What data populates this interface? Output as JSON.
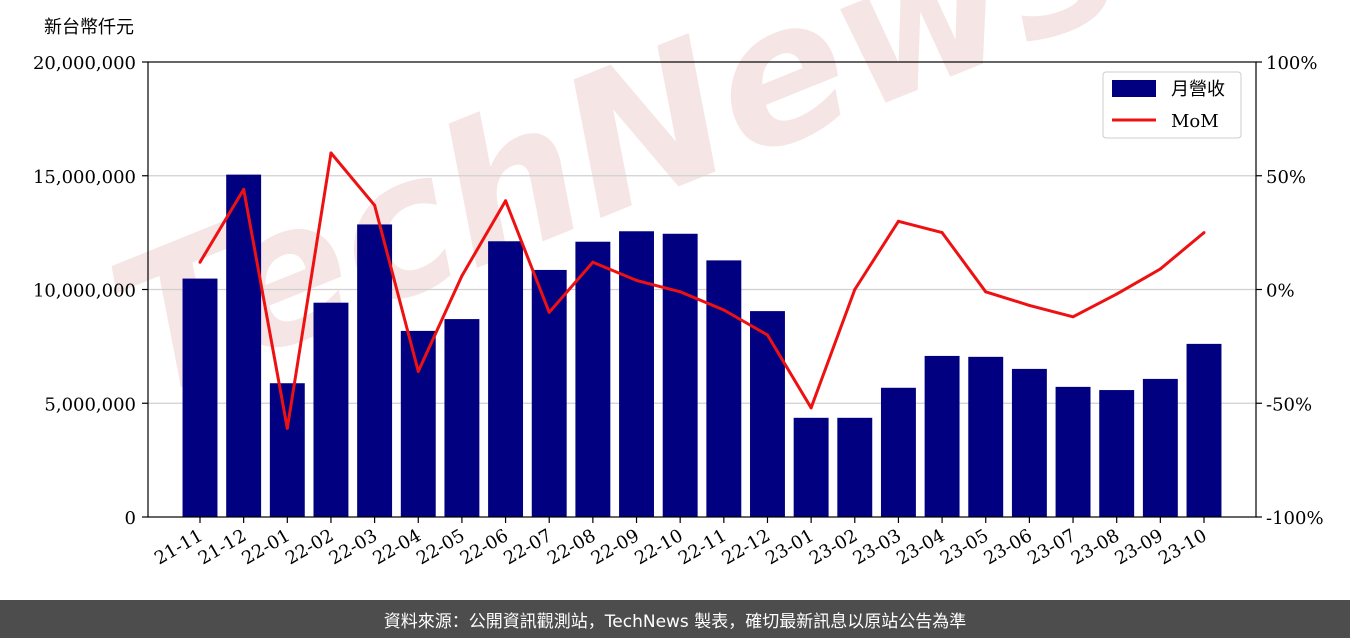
{
  "unit_label": "新台幣仟元",
  "watermark": "TechNews",
  "footer": "資料來源：公開資訊觀測站，TechNews 製表，確切最新訊息以原站公告為準",
  "colors": {
    "bar": "#000080",
    "line": "#ee1111",
    "grid": "#d0d0d0",
    "footer_bg": "#4d4d4d"
  },
  "chart_data": {
    "type": "bar",
    "categories": [
      "21-11",
      "21-12",
      "22-01",
      "22-02",
      "22-03",
      "22-04",
      "22-05",
      "22-06",
      "22-07",
      "22-08",
      "22-09",
      "22-10",
      "22-11",
      "22-12",
      "23-01",
      "23-02",
      "23-03",
      "23-04",
      "23-05",
      "23-06",
      "23-07",
      "23-08",
      "23-09",
      "23-10"
    ],
    "series": [
      {
        "name": "月營收",
        "type": "bar",
        "axis": "left",
        "values": [
          10480000,
          15050000,
          5880000,
          9420000,
          12860000,
          8180000,
          8700000,
          12120000,
          10860000,
          12100000,
          12560000,
          12450000,
          11280000,
          9050000,
          4360000,
          4360000,
          5680000,
          7080000,
          7040000,
          6510000,
          5720000,
          5580000,
          6070000,
          7610000
        ]
      },
      {
        "name": "MoM",
        "type": "line",
        "axis": "right",
        "values": [
          12,
          44,
          -61,
          60,
          37,
          -36,
          6,
          39,
          -10,
          12,
          4,
          -1,
          -9,
          -20,
          -52,
          0,
          30,
          25,
          -1,
          -7,
          -12,
          -2,
          9,
          25
        ]
      }
    ],
    "y_left": {
      "range": [
        0,
        20000000
      ],
      "ticks": [
        "0",
        "5,000,000",
        "10,000,000",
        "15,000,000",
        "20,000,000"
      ],
      "tick_values": [
        0,
        5000000,
        10000000,
        15000000,
        20000000
      ]
    },
    "y_right": {
      "range": [
        -100,
        100
      ],
      "ticks": [
        "-100%",
        "-50%",
        "0%",
        "50%",
        "100%"
      ],
      "tick_values": [
        -100,
        -50,
        0,
        50,
        100
      ]
    },
    "grid": "horizontal",
    "legend_position": "top-right"
  }
}
